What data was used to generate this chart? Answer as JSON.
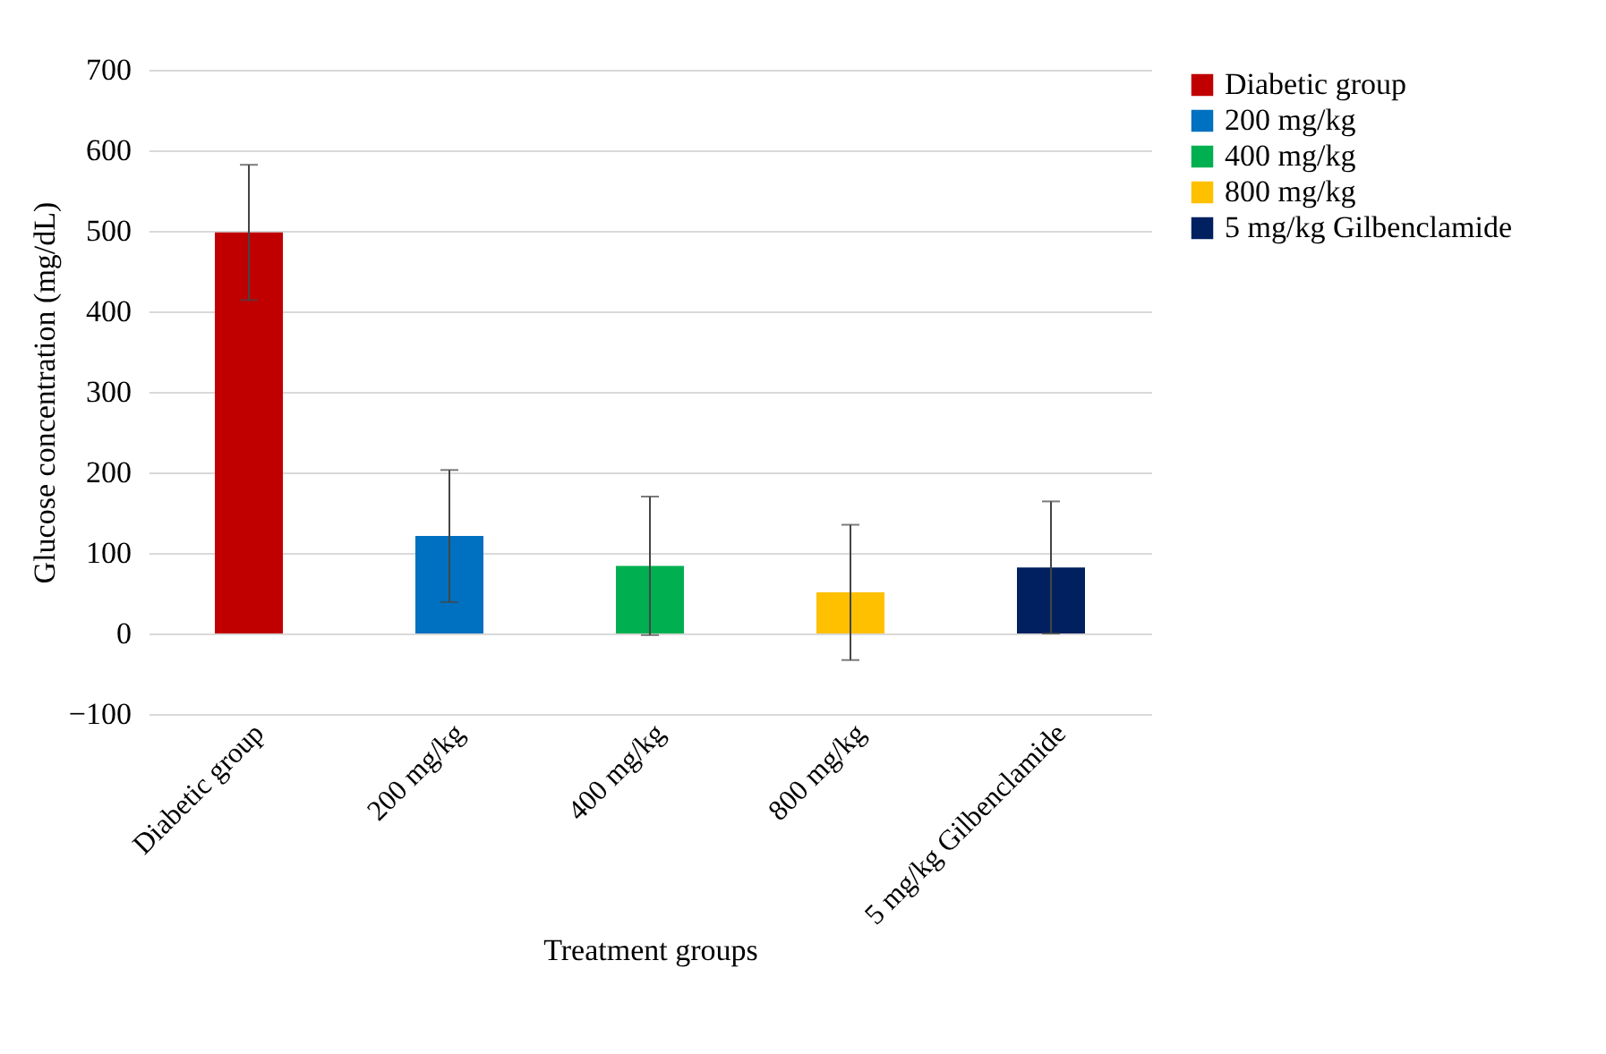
{
  "chart_data": {
    "type": "bar",
    "xlabel": "Treatment groups",
    "ylabel": "Glucose concentration (mg/dL)",
    "categories": [
      "Diabetic group",
      "200 mg/kg",
      "400 mg/kg",
      "800 mg/kg",
      "5 mg/kg Gilbenclamide"
    ],
    "stacked": true,
    "series": [
      {
        "name": "Diabetic group",
        "color": "#c00000",
        "values": [
          498,
          null,
          null,
          null,
          null
        ],
        "errors": [
          84,
          null,
          null,
          null,
          null
        ]
      },
      {
        "name": "200 mg/kg",
        "color": "#0070c0",
        "values": [
          null,
          121,
          null,
          null,
          null
        ],
        "errors": [
          null,
          82,
          null,
          null,
          null
        ]
      },
      {
        "name": "400 mg/kg",
        "color": "#00b050",
        "values": [
          null,
          null,
          84,
          null,
          null
        ],
        "errors": [
          null,
          null,
          86,
          null,
          null
        ]
      },
      {
        "name": "800 mg/kg",
        "color": "#ffc000",
        "values": [
          null,
          null,
          null,
          51,
          null
        ],
        "errors": [
          null,
          null,
          null,
          84,
          null
        ]
      },
      {
        "name": "5 mg/kg Gilbenclamide",
        "color": "#002060",
        "values": [
          null,
          null,
          null,
          null,
          82
        ],
        "errors": [
          null,
          null,
          null,
          null,
          82
        ]
      }
    ],
    "ylim": [
      -100,
      700
    ],
    "yticks": [
      -100,
      0,
      100,
      200,
      300,
      400,
      500,
      600,
      700
    ],
    "grid": "y",
    "legend": "right"
  }
}
